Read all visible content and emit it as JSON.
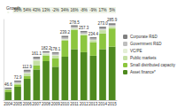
{
  "chart_data": {
    "type": "bar",
    "stacked": true,
    "categories": [
      "2004",
      "2005",
      "2006",
      "2007",
      "2008",
      "2009",
      "2010",
      "2011",
      "2012",
      "2013",
      "2014",
      "2015"
    ],
    "series": [
      {
        "name": "Asset finance*",
        "color": "#4f8a1f",
        "values": [
          30.2,
          49.7,
          79.4,
          114.1,
          145.0,
          124.2,
          161.5,
          189.7,
          178.3,
          165.3,
          189.8,
          199.0
        ]
      },
      {
        "name": "Small distributed capacity",
        "color": "#8cc63f",
        "values": [
          8.6,
          8.6,
          9.2,
          14.8,
          20.7,
          31.0,
          59.4,
          71.5,
          63.3,
          50.6,
          58.1,
          67.4
        ]
      },
      {
        "name": "Public markets",
        "color": "#c5e0a5",
        "values": [
          0.3,
          3.6,
          10.0,
          18.4,
          5.3,
          10.6,
          4.7,
          4.6,
          3.6,
          7.4,
          12.3,
          6.4
        ]
      },
      {
        "name": "VC/PE",
        "color": "#e4efd6",
        "values": [
          0.4,
          1.3,
          2.7,
          3.0,
          3.6,
          1.8,
          2.0,
          2.3,
          1.3,
          0.7,
          2.1,
          2.5
        ]
      },
      {
        "name": "Government R&D",
        "color": "#bfbfbf",
        "values": [
          2.7,
          4.1,
          5.3,
          4.8,
          3.4,
          5.3,
          5.3,
          4.5,
          5.4,
          4.9,
          4.8,
          4.6
        ]
      },
      {
        "name": "Corporate R&D",
        "color": "#808080",
        "values": [
          4.4,
          5.6,
          6.3,
          6.0,
          4.2,
          5.2,
          6.3,
          5.9,
          5.4,
          5.5,
          5.9,
          6.0
        ]
      }
    ],
    "totals": [
      46.6,
      72.9,
      112.9,
      161.1,
      182.2,
      178.1,
      239.2,
      278.5,
      257.3,
      234.4,
      273.0,
      285.9
    ],
    "totals_labels": [
      "46.6",
      "72.9",
      "112.9",
      "161.1",
      "182.2",
      "178.1",
      "239.2",
      "278.5",
      "257.3",
      "234.4",
      "273.0",
      "285.9"
    ],
    "growth": {
      "label": "Growth",
      "values": [
        null,
        56,
        54,
        43,
        13,
        -2,
        34,
        16,
        -8,
        -9,
        17,
        5
      ],
      "value_labels": [
        null,
        "56%",
        "54%",
        "43%",
        "13%",
        "-2%",
        "34%",
        "16%",
        "-8%",
        "-9%",
        "17%",
        "5%"
      ]
    },
    "ylim": [
      0,
      300
    ],
    "yticks": [],
    "tick_labels": "x",
    "grid": false,
    "legend": "right"
  }
}
